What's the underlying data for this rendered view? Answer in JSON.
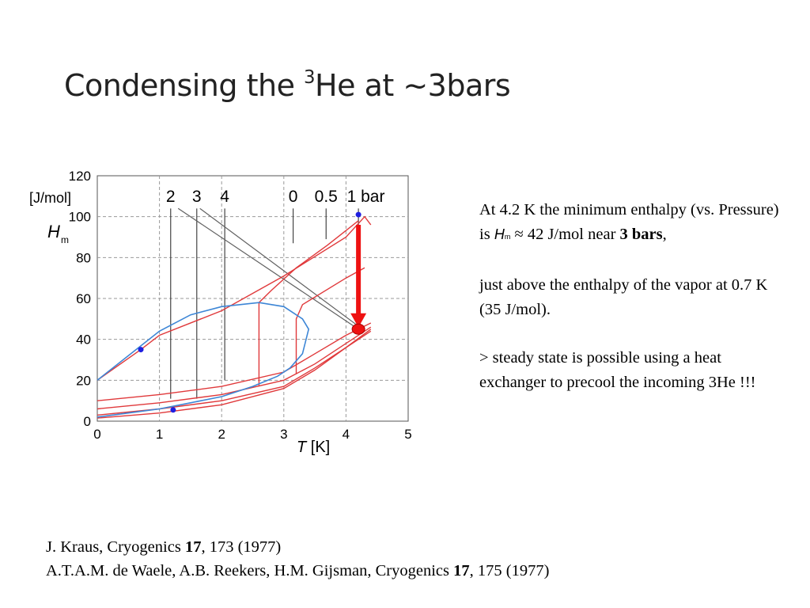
{
  "title": {
    "main": "Condensing the ",
    "sup": "3",
    "rest": "He  at ~3bars"
  },
  "notes": {
    "p1_a": "At 4.2 K the minimum enthalpy (vs. Pressure) is ",
    "p1_sym": "H",
    "p1_sub": "m",
    "p1_b": " ≈ 42 J/mol near ",
    "p1_bold": "3 bars",
    "p1_c": ",",
    "p2": "just above the enthalpy of the vapor at 0.7 K (35 J/mol).",
    "p3": "> steady state is possible using a heat exchanger to precool the incoming 3He !!!"
  },
  "refs": [
    {
      "a": "J. Kraus, Cryogenics ",
      "vol": "17",
      "b": ", 173 (1977)"
    },
    {
      "a": "A.T.A.M. de Waele, A.B. Reekers, H.M. Gijsman, Cryogenics ",
      "vol": "17",
      "b": ", 175 (1977)"
    }
  ],
  "colors": {
    "isobar": "#e0393b",
    "saturation": "#3d86d6",
    "guide": "#606060",
    "arrow": "#ee1111",
    "point": "#1f1fe0"
  },
  "chart_data": {
    "type": "line",
    "xlabel_sym": "T",
    "xlabel_unit": " [K]",
    "ylabel_unit": "[J/mol]",
    "ylabel_sym": "H",
    "ylabel_sub": "m",
    "xlim": [
      0,
      5
    ],
    "ylim": [
      0,
      120
    ],
    "xticks": [
      0,
      1,
      2,
      3,
      4,
      5
    ],
    "yticks": [
      0,
      20,
      40,
      60,
      80,
      100,
      120
    ],
    "grid": true,
    "pressure_labels": [
      {
        "text": "2",
        "x": 1.18
      },
      {
        "text": "3",
        "x": 1.6
      },
      {
        "text": "4",
        "x": 2.05
      },
      {
        "text": "0",
        "x": 3.15
      },
      {
        "text": "0.5",
        "x": 3.68
      },
      {
        "text": "1 bar",
        "x": 4.32
      }
    ],
    "saturation_curve": [
      [
        0,
        20
      ],
      [
        0.5,
        32
      ],
      [
        1,
        44
      ],
      [
        1.5,
        52
      ],
      [
        2,
        56
      ],
      [
        2.6,
        58
      ],
      [
        3.0,
        56
      ],
      [
        3.3,
        50
      ],
      [
        3.4,
        45
      ],
      [
        3.3,
        33
      ],
      [
        3.1,
        26
      ],
      [
        2.9,
        22
      ],
      [
        2.5,
        17
      ],
      [
        2.0,
        12
      ],
      [
        1.5,
        9
      ],
      [
        1.0,
        6
      ],
      [
        0.5,
        4
      ],
      [
        0,
        2
      ]
    ],
    "isobars": [
      [
        [
          0,
          20
        ],
        [
          0.7,
          35
        ],
        [
          1,
          42
        ],
        [
          2,
          54
        ],
        [
          3,
          71
        ],
        [
          4,
          90
        ],
        [
          4.3,
          100
        ],
        [
          4.4,
          96
        ]
      ],
      [
        [
          2.6,
          17
        ],
        [
          2.6,
          58
        ],
        [
          2.8,
          64
        ],
        [
          3.2,
          75
        ],
        [
          3.7,
          86
        ],
        [
          4.2,
          98
        ]
      ],
      [
        [
          3.2,
          23
        ],
        [
          3.2,
          50
        ],
        [
          3.3,
          57
        ],
        [
          4,
          70
        ],
        [
          4.3,
          75
        ]
      ],
      [
        [
          0,
          10
        ],
        [
          1,
          13
        ],
        [
          2,
          17
        ],
        [
          3,
          24
        ],
        [
          3.5,
          33
        ],
        [
          4,
          42
        ],
        [
          4.4,
          48
        ]
      ],
      [
        [
          0,
          6
        ],
        [
          1,
          9
        ],
        [
          2,
          13
        ],
        [
          3,
          20
        ],
        [
          3.5,
          28
        ],
        [
          4,
          38
        ],
        [
          4.4,
          46
        ]
      ],
      [
        [
          0,
          3
        ],
        [
          1,
          6
        ],
        [
          2,
          10
        ],
        [
          3,
          17
        ],
        [
          3.5,
          26
        ],
        [
          4,
          36
        ],
        [
          4.4,
          45
        ]
      ],
      [
        [
          0,
          1.5
        ],
        [
          1,
          4
        ],
        [
          2,
          8
        ],
        [
          3,
          16
        ],
        [
          3.5,
          25
        ],
        [
          4,
          36
        ],
        [
          4.4,
          44
        ]
      ]
    ],
    "guide_lines": [
      [
        [
          1.3,
          104
        ],
        [
          4.15,
          46
        ]
      ],
      [
        [
          1.65,
          104
        ],
        [
          4.22,
          46
        ]
      ]
    ],
    "vertical_markers": [
      {
        "x": 1.18,
        "y0": 11,
        "y1": 104
      },
      {
        "x": 1.6,
        "y0": 11,
        "y1": 104
      },
      {
        "x": 2.05,
        "y0": 20,
        "y1": 104
      },
      {
        "x": 3.15,
        "y0": 87,
        "y1": 104
      },
      {
        "x": 3.68,
        "y0": 89,
        "y1": 104
      },
      {
        "x": 4.2,
        "y0": 95,
        "y1": 104
      }
    ],
    "points": [
      {
        "x": 0.7,
        "y": 35
      },
      {
        "x": 1.22,
        "y": 5.5
      },
      {
        "x": 4.2,
        "y": 101
      }
    ],
    "arrow": {
      "x": 4.2,
      "y_from": 96,
      "y_to": 45
    },
    "highlight": {
      "x": 4.2,
      "y": 45
    }
  }
}
